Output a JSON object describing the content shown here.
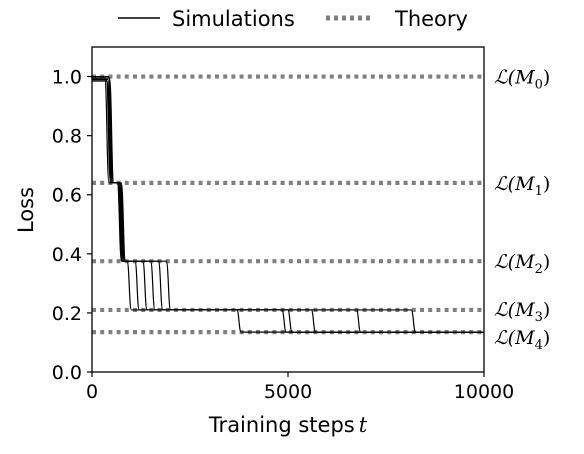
{
  "chart_data": {
    "type": "line",
    "xlabel_text": "Training steps",
    "xlabel_var": "t",
    "ylabel": "Loss",
    "xlim": [
      0,
      10000
    ],
    "ylim": [
      0,
      1.1
    ],
    "xticks": [
      0,
      5000,
      10000
    ],
    "xtick_labels": [
      "0",
      "5000",
      "10000"
    ],
    "yticks": [
      0.0,
      0.2,
      0.4,
      0.6,
      0.8,
      1.0
    ],
    "ytick_labels": [
      "0.0",
      "0.2",
      "0.4",
      "0.6",
      "0.8",
      "1.0"
    ],
    "legend": {
      "placement": "top-center",
      "entries": [
        {
          "label": "Simulations",
          "style": "solid",
          "color": "#000000"
        },
        {
          "label": "Theory",
          "style": "dotted",
          "color": "#808080"
        }
      ]
    },
    "theory_levels": [
      {
        "label_base": "M",
        "label_sub": "0",
        "value": 1.0
      },
      {
        "label_base": "M",
        "label_sub": "1",
        "value": 0.64
      },
      {
        "label_base": "M",
        "label_sub": "2",
        "value": 0.375
      },
      {
        "label_base": "M",
        "label_sub": "3",
        "value": 0.21
      },
      {
        "label_base": "M",
        "label_sub": "4",
        "value": 0.135
      }
    ],
    "series": [
      {
        "steps": [
          [
            0,
            0.995
          ],
          [
            380,
            0.64
          ],
          [
            700,
            0.375
          ],
          [
            950,
            0.21
          ],
          [
            3750,
            0.135
          ]
        ]
      },
      {
        "steps": [
          [
            0,
            0.99
          ],
          [
            420,
            0.64
          ],
          [
            720,
            0.375
          ],
          [
            1150,
            0.21
          ],
          [
            4900,
            0.135
          ]
        ]
      },
      {
        "steps": [
          [
            0,
            0.985
          ],
          [
            440,
            0.64
          ],
          [
            740,
            0.375
          ],
          [
            1350,
            0.21
          ],
          [
            5050,
            0.135
          ]
        ]
      },
      {
        "steps": [
          [
            0,
            0.99
          ],
          [
            460,
            0.64
          ],
          [
            760,
            0.375
          ],
          [
            1550,
            0.21
          ],
          [
            5650,
            0.135
          ]
        ]
      },
      {
        "steps": [
          [
            0,
            1.0
          ],
          [
            480,
            0.64
          ],
          [
            780,
            0.375
          ],
          [
            1750,
            0.21
          ],
          [
            6800,
            0.135
          ]
        ]
      },
      {
        "steps": [
          [
            0,
            0.995
          ],
          [
            500,
            0.64
          ],
          [
            800,
            0.375
          ],
          [
            1950,
            0.21
          ],
          [
            8200,
            0.135
          ]
        ]
      }
    ],
    "grid": false
  },
  "colors": {
    "simulation": "#000000",
    "theory": "#808080"
  }
}
